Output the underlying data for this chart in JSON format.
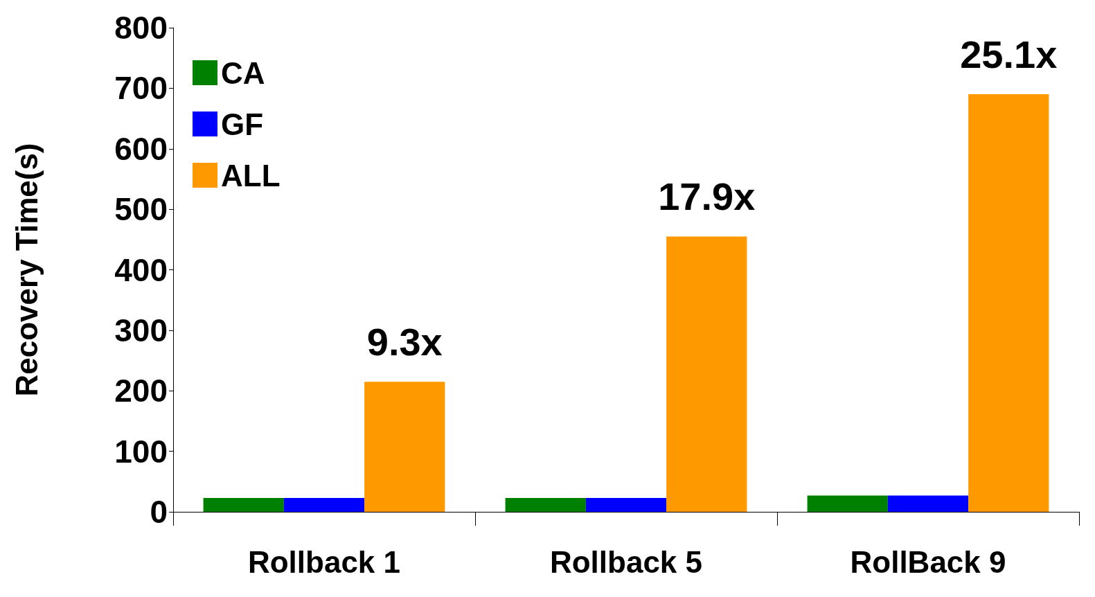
{
  "chart_data": {
    "type": "bar",
    "ylabel": "Recovery Time(s)",
    "categories": [
      "Rollback 1",
      "Rollback 5",
      "RollBack 9"
    ],
    "series": [
      {
        "name": "CA",
        "color": "#008000",
        "values": [
          23,
          23,
          27
        ]
      },
      {
        "name": "GF",
        "color": "#0000ff",
        "values": [
          23,
          23,
          27
        ]
      },
      {
        "name": "ALL",
        "color": "#ff9900",
        "values": [
          215,
          455,
          690
        ]
      }
    ],
    "annotations": [
      "9.3x",
      "17.9x",
      "25.1x"
    ],
    "ylim": [
      0,
      800
    ],
    "yticks": [
      0,
      100,
      200,
      300,
      400,
      500,
      600,
      700,
      800
    ],
    "grid": false,
    "legend": "top left"
  }
}
